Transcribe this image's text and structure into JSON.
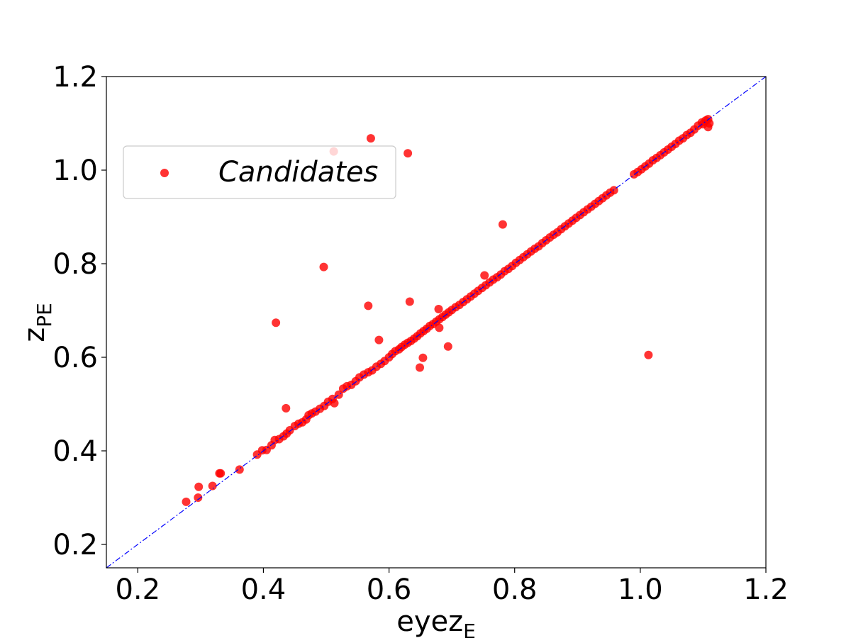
{
  "chart_data": {
    "type": "scatter",
    "xlabel_main": "eyez",
    "xlabel_sub": "E",
    "ylabel_main": "z",
    "ylabel_sub": "PE",
    "xlim": [
      0.15,
      1.2
    ],
    "ylim": [
      0.15,
      1.2
    ],
    "xticks": [
      "0.2",
      "0.4",
      "0.6",
      "0.8",
      "1.0",
      "1.2"
    ],
    "yticks": [
      "0.2",
      "0.4",
      "0.6",
      "0.8",
      "1.0",
      "1.2"
    ],
    "legend": {
      "label": "Candidates",
      "position": "upper-left"
    },
    "grid": false,
    "colors": {
      "points": "#ff0000",
      "reference_line": "#0000ff"
    },
    "reference_line": {
      "style": "dash-dot",
      "from": [
        0.15,
        0.15
      ],
      "to": [
        1.2,
        1.2
      ]
    },
    "series": [
      {
        "name": "Candidates",
        "points": [
          [
            0.277,
            0.291
          ],
          [
            0.296,
            0.3
          ],
          [
            0.297,
            0.323
          ],
          [
            0.319,
            0.325
          ],
          [
            0.33,
            0.352
          ],
          [
            0.332,
            0.352
          ],
          [
            0.362,
            0.36
          ],
          [
            0.39,
            0.392
          ],
          [
            0.398,
            0.401
          ],
          [
            0.405,
            0.402
          ],
          [
            0.413,
            0.412
          ],
          [
            0.418,
            0.423
          ],
          [
            0.425,
            0.425
          ],
          [
            0.432,
            0.431
          ],
          [
            0.437,
            0.437
          ],
          [
            0.442,
            0.444
          ],
          [
            0.45,
            0.453
          ],
          [
            0.456,
            0.458
          ],
          [
            0.462,
            0.461
          ],
          [
            0.468,
            0.467
          ],
          [
            0.472,
            0.476
          ],
          [
            0.477,
            0.48
          ],
          [
            0.483,
            0.484
          ],
          [
            0.49,
            0.49
          ],
          [
            0.497,
            0.496
          ],
          [
            0.503,
            0.505
          ],
          [
            0.51,
            0.511
          ],
          [
            0.513,
            0.502
          ],
          [
            0.52,
            0.52
          ],
          [
            0.527,
            0.533
          ],
          [
            0.533,
            0.538
          ],
          [
            0.54,
            0.541
          ],
          [
            0.547,
            0.549
          ],
          [
            0.553,
            0.557
          ],
          [
            0.56,
            0.563
          ],
          [
            0.567,
            0.568
          ],
          [
            0.573,
            0.572
          ],
          [
            0.58,
            0.58
          ],
          [
            0.587,
            0.586
          ],
          [
            0.593,
            0.592
          ],
          [
            0.6,
            0.6
          ],
          [
            0.605,
            0.607
          ],
          [
            0.61,
            0.613
          ],
          [
            0.616,
            0.617
          ],
          [
            0.62,
            0.622
          ],
          [
            0.625,
            0.627
          ],
          [
            0.63,
            0.631
          ],
          [
            0.635,
            0.635
          ],
          [
            0.64,
            0.64
          ],
          [
            0.645,
            0.645
          ],
          [
            0.65,
            0.651
          ],
          [
            0.655,
            0.656
          ],
          [
            0.66,
            0.661
          ],
          [
            0.665,
            0.667
          ],
          [
            0.67,
            0.671
          ],
          [
            0.675,
            0.676
          ],
          [
            0.68,
            0.681
          ],
          [
            0.685,
            0.686
          ],
          [
            0.69,
            0.691
          ],
          [
            0.695,
            0.696
          ],
          [
            0.7,
            0.701
          ],
          [
            0.706,
            0.707
          ],
          [
            0.712,
            0.712
          ],
          [
            0.718,
            0.718
          ],
          [
            0.724,
            0.724
          ],
          [
            0.73,
            0.73
          ],
          [
            0.736,
            0.736
          ],
          [
            0.742,
            0.742
          ],
          [
            0.748,
            0.748
          ],
          [
            0.754,
            0.754
          ],
          [
            0.76,
            0.76
          ],
          [
            0.766,
            0.766
          ],
          [
            0.772,
            0.771
          ],
          [
            0.778,
            0.777
          ],
          [
            0.784,
            0.784
          ],
          [
            0.79,
            0.789
          ],
          [
            0.796,
            0.795
          ],
          [
            0.802,
            0.802
          ],
          [
            0.808,
            0.808
          ],
          [
            0.814,
            0.814
          ],
          [
            0.82,
            0.82
          ],
          [
            0.826,
            0.826
          ],
          [
            0.832,
            0.832
          ],
          [
            0.838,
            0.837
          ],
          [
            0.844,
            0.844
          ],
          [
            0.85,
            0.85
          ],
          [
            0.856,
            0.856
          ],
          [
            0.862,
            0.862
          ],
          [
            0.868,
            0.867
          ],
          [
            0.874,
            0.874
          ],
          [
            0.88,
            0.88
          ],
          [
            0.886,
            0.886
          ],
          [
            0.892,
            0.892
          ],
          [
            0.898,
            0.898
          ],
          [
            0.904,
            0.904
          ],
          [
            0.91,
            0.91
          ],
          [
            0.916,
            0.916
          ],
          [
            0.922,
            0.922
          ],
          [
            0.928,
            0.928
          ],
          [
            0.934,
            0.934
          ],
          [
            0.94,
            0.94
          ],
          [
            0.946,
            0.946
          ],
          [
            0.952,
            0.952
          ],
          [
            0.958,
            0.957
          ],
          [
            0.99,
            0.991
          ],
          [
            0.996,
            0.996
          ],
          [
            1.002,
            1.002
          ],
          [
            1.008,
            1.008
          ],
          [
            1.014,
            1.014
          ],
          [
            1.02,
            1.021
          ],
          [
            1.026,
            1.026
          ],
          [
            1.032,
            1.032
          ],
          [
            1.038,
            1.038
          ],
          [
            1.044,
            1.044
          ],
          [
            1.05,
            1.05
          ],
          [
            1.056,
            1.056
          ],
          [
            1.062,
            1.063
          ],
          [
            1.068,
            1.068
          ],
          [
            1.074,
            1.075
          ],
          [
            1.08,
            1.08
          ],
          [
            1.086,
            1.087
          ],
          [
            1.092,
            1.095
          ],
          [
            1.098,
            1.102
          ],
          [
            1.104,
            1.106
          ],
          [
            1.108,
            1.109
          ],
          [
            1.1,
            1.098
          ],
          [
            1.11,
            1.1
          ],
          [
            1.108,
            1.092
          ],
          [
            0.42,
            0.674
          ],
          [
            0.436,
            0.491
          ],
          [
            0.496,
            0.793
          ],
          [
            0.512,
            1.04
          ],
          [
            0.571,
            1.068
          ],
          [
            0.567,
            0.71
          ],
          [
            0.584,
            0.637
          ],
          [
            0.63,
            1.036
          ],
          [
            0.633,
            0.719
          ],
          [
            0.649,
            0.578
          ],
          [
            0.654,
            0.599
          ],
          [
            0.679,
            0.703
          ],
          [
            0.68,
            0.663
          ],
          [
            0.694,
            0.623
          ],
          [
            0.752,
            0.775
          ],
          [
            0.781,
            0.884
          ],
          [
            1.013,
            0.605
          ]
        ]
      }
    ]
  }
}
